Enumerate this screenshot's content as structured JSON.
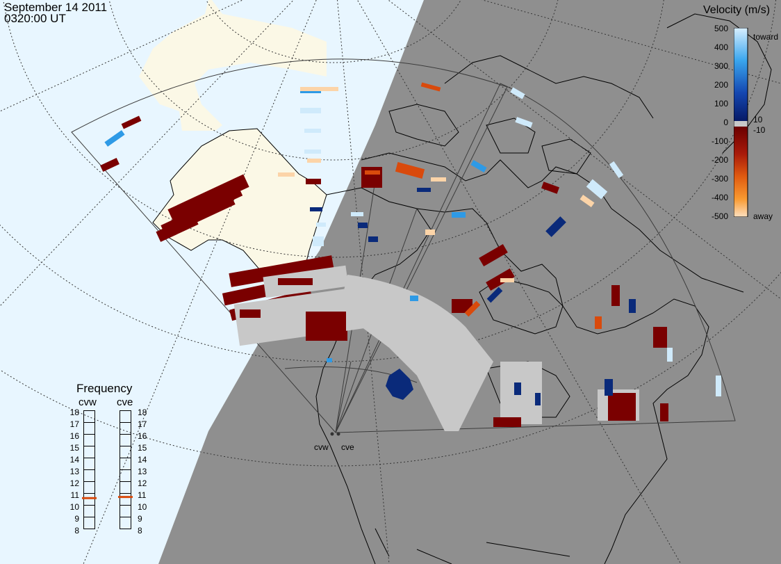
{
  "header": {
    "date": "September 14 2011",
    "time": "0320:00 UT"
  },
  "legend": {
    "title": "Velocity (m/s)",
    "ticks": [
      "500",
      "400",
      "300",
      "200",
      "100",
      "10",
      "0",
      "-10",
      "-100",
      "-200",
      "-300",
      "-400",
      "-500"
    ],
    "toward_label": "toward",
    "away_label": "away",
    "colors": {
      "toward_light": "#cfeafb",
      "toward_mid": "#2e9ae6",
      "toward_dark": "#0a2a7a",
      "ground_scatter": "#c8c8c8",
      "away_dark": "#7a0000",
      "away_mid": "#d94a0c",
      "away_light": "#fcd4a8"
    }
  },
  "frequency": {
    "title": "Frequency",
    "radars": [
      {
        "name": "cvw",
        "freq_mhz": 10.6
      },
      {
        "name": "cve",
        "freq_mhz": 10.7
      }
    ],
    "ticks": [
      "18",
      "17",
      "16",
      "15",
      "14",
      "13",
      "12",
      "11",
      "10",
      "9",
      "8"
    ],
    "range_mhz": [
      8,
      18
    ]
  },
  "radar_sites": [
    {
      "name": "cvw"
    },
    {
      "name": "cve"
    }
  ],
  "map_colors": {
    "ocean_day": "#e8f6ff",
    "land_day": "#fbf8e6",
    "night": "#8f8f8f",
    "coast": "#000000",
    "fov": "#3c3c3c"
  }
}
